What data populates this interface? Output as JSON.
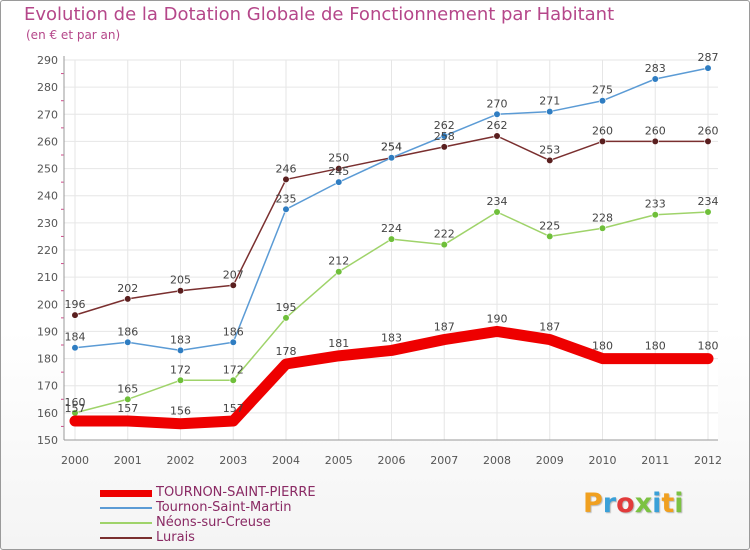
{
  "header": {
    "title": "Evolution de la Dotation Globale de Fonctionnement par Habitant",
    "subtitle": "(en € et par an)"
  },
  "colors": {
    "title": "#b5478a",
    "axis_label": "#555555",
    "value_label": "#444444",
    "legend_text": "#8a2a64",
    "grid": "#e6e6e6"
  },
  "chart_data": {
    "type": "line",
    "title": "Evolution de la Dotation Globale de Fonctionnement par Habitant",
    "subtitle": "(en € et par an)",
    "xlabel": "",
    "ylabel": "",
    "ylim": [
      150,
      290
    ],
    "y_ticks": [
      150,
      160,
      170,
      180,
      190,
      200,
      210,
      220,
      230,
      240,
      250,
      260,
      270,
      280,
      290
    ],
    "categories": [
      "2000",
      "2001",
      "2002",
      "2003",
      "2004",
      "2005",
      "2006",
      "2007",
      "2008",
      "2009",
      "2010",
      "2011",
      "2012"
    ],
    "grid": true,
    "legend_position": "bottom-left",
    "series": [
      {
        "name": "TOURNON-SAINT-PIERRE",
        "color": "#ee0000",
        "values": [
          157,
          157,
          156,
          157,
          178,
          181,
          183,
          187,
          190,
          187,
          180,
          180,
          180
        ],
        "labels": [
          "157",
          "157",
          "156",
          "157",
          "178",
          "181",
          "183",
          "187",
          "190",
          "187",
          "180",
          "180",
          "180"
        ]
      },
      {
        "name": "Tournon-Saint-Martin",
        "color": "#5b9bd5",
        "marker": "#2f7dc2",
        "values": [
          184,
          186,
          183,
          186,
          235,
          245,
          254,
          262,
          270,
          271,
          275,
          283,
          287
        ],
        "labels": [
          "184",
          "186",
          "183",
          "186",
          "235",
          "245",
          "254",
          "262",
          "270",
          "271",
          "275",
          "283",
          "287"
        ]
      },
      {
        "name": "Néons-sur-Creuse",
        "color": "#9fd36a",
        "marker": "#6fbf3a",
        "values": [
          160,
          165,
          172,
          172,
          195,
          212,
          224,
          222,
          234,
          225,
          228,
          233,
          234
        ],
        "labels": [
          "160",
          "165",
          "172",
          "172",
          "195",
          "212",
          "224",
          "222",
          "234",
          "225",
          "228",
          "233",
          "234"
        ]
      },
      {
        "name": "Lurais",
        "color": "#7a2f2f",
        "marker": "#5a1f1f",
        "values": [
          196,
          202,
          205,
          207,
          246,
          250,
          254,
          258,
          262,
          253,
          260,
          260,
          260
        ],
        "labels": [
          "196",
          "202",
          "205",
          "207",
          "246",
          "250",
          "254",
          "258",
          "262",
          "253",
          "260",
          "260",
          "260"
        ]
      }
    ]
  },
  "legend": {
    "items": [
      {
        "label": "TOURNON-SAINT-PIERRE",
        "color": "#ee0000"
      },
      {
        "label": "Tournon-Saint-Martin",
        "color": "#5b9bd5"
      },
      {
        "label": "Néons-sur-Creuse",
        "color": "#9fd36a"
      },
      {
        "label": "Lurais",
        "color": "#7a2f2f"
      }
    ]
  },
  "logo": {
    "letters": [
      "P",
      "r",
      "o",
      "x",
      "i",
      "t",
      "i"
    ],
    "colors": [
      "#f0a020",
      "#3aa0d8",
      "#e23b3b",
      "#7cc242",
      "#3aa0d8",
      "#f0a020",
      "#7cc242"
    ]
  }
}
